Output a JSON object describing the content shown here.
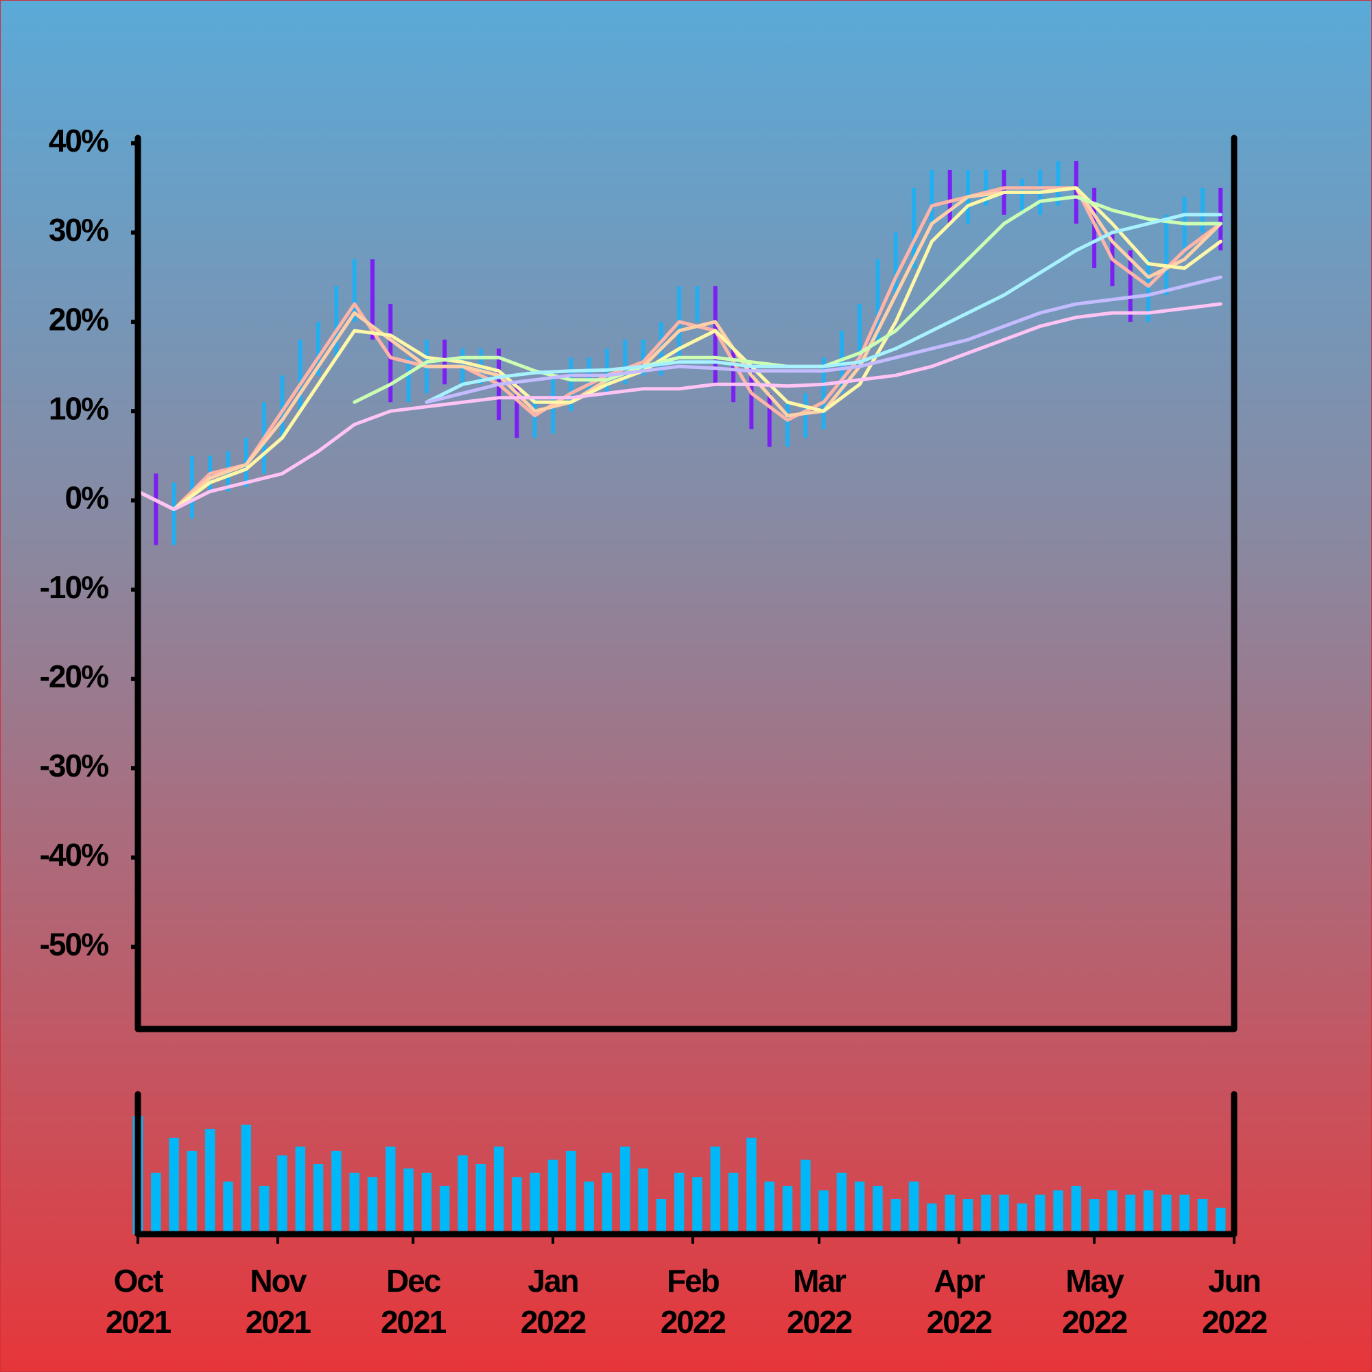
{
  "chart_data": {
    "type": "candlestick",
    "ylim": [
      -59.2,
      40.6
    ],
    "yticks": [
      {
        "value": 40,
        "label": "40%"
      },
      {
        "value": 30,
        "label": "30%"
      },
      {
        "value": 20,
        "label": "20%"
      },
      {
        "value": 10,
        "label": "10%"
      },
      {
        "value": 0,
        "label": "0%"
      },
      {
        "value": -10,
        "label": "-10%"
      },
      {
        "value": -20,
        "label": "-20%"
      },
      {
        "value": -30,
        "label": "-30%"
      },
      {
        "value": -40,
        "label": "-40%"
      },
      {
        "value": -50,
        "label": "-50%"
      }
    ],
    "xlim": [
      0,
      243
    ],
    "xticks": [
      {
        "value": 0,
        "label": "Oct 2021"
      },
      {
        "value": 31,
        "label": "Nov 2021"
      },
      {
        "value": 61,
        "label": "Dec 2021"
      },
      {
        "value": 92,
        "label": "Jan 2022"
      },
      {
        "value": 123,
        "label": "Feb 2022"
      },
      {
        "value": 151,
        "label": "Mar 2022"
      },
      {
        "value": 182,
        "label": "Apr 2022"
      },
      {
        "value": 212,
        "label": "May 2022"
      },
      {
        "value": 243,
        "label": "Jun 2022"
      }
    ],
    "up_color": "#22aef0",
    "down_color": "#7b1ff2",
    "candles": {
      "x": [
        0,
        4,
        8,
        12,
        16,
        20,
        24,
        28,
        32,
        36,
        40,
        44,
        48,
        52,
        56,
        60,
        64,
        68,
        72,
        76,
        80,
        84,
        88,
        92,
        96,
        100,
        104,
        108,
        112,
        116,
        120,
        124,
        128,
        132,
        136,
        140,
        144,
        148,
        152,
        156,
        160,
        164,
        168,
        172,
        176,
        180,
        184,
        188,
        192,
        196,
        200,
        204,
        208,
        212,
        216,
        220,
        224,
        228,
        232,
        236,
        240
      ],
      "open": [
        0,
        1,
        -3,
        0,
        3,
        3,
        3.5,
        5,
        9,
        12,
        16,
        18,
        22,
        25,
        20,
        13,
        14,
        16,
        15,
        15,
        15,
        11,
        9,
        9.5,
        12,
        14,
        14,
        15,
        16,
        16,
        18,
        22,
        22,
        15,
        13,
        10,
        8,
        9,
        10,
        14,
        17,
        20,
        25,
        28,
        33,
        35,
        33,
        35,
        35,
        34,
        34,
        35,
        36,
        33,
        28,
        26,
        22,
        25,
        30,
        32,
        33
      ],
      "close": [
        1,
        -3,
        0,
        3,
        3,
        3.5,
        5,
        9,
        12,
        16,
        18,
        22,
        25,
        20,
        13,
        14,
        16,
        15,
        15,
        15,
        11,
        9,
        9.5,
        12,
        14,
        14,
        15,
        16,
        16,
        18,
        22,
        22,
        15,
        13,
        10,
        8,
        9,
        10,
        14,
        17,
        20,
        25,
        28,
        33,
        35,
        33,
        35,
        35,
        34,
        34,
        35,
        36,
        33,
        28,
        26,
        22,
        25,
        30,
        32,
        33,
        30
      ],
      "low": [
        -2,
        -5,
        -5,
        -2,
        1,
        1,
        1.5,
        3,
        7,
        10,
        14,
        16,
        20,
        18,
        11,
        11,
        12,
        13,
        13,
        13,
        9,
        7,
        7,
        7.5,
        10,
        12,
        12,
        13,
        14,
        14,
        16,
        20,
        13,
        11,
        8,
        6,
        6,
        7,
        8,
        12,
        15,
        18,
        23,
        26,
        31,
        31,
        31,
        33,
        32,
        32,
        32,
        33,
        31,
        26,
        24,
        20,
        20,
        23,
        28,
        30,
        28
      ],
      "high": [
        3,
        3,
        2,
        5,
        5,
        5.5,
        7,
        11,
        14,
        18,
        20,
        24,
        27,
        27,
        22,
        16,
        18,
        18,
        17,
        17,
        17,
        13,
        11.5,
        14,
        16,
        16,
        17,
        18,
        18,
        20,
        24,
        24,
        24,
        17,
        15,
        12,
        11,
        12,
        16,
        19,
        22,
        27,
        30,
        35,
        37,
        37,
        37,
        37,
        37,
        36,
        37,
        38,
        38,
        35,
        30,
        28,
        27,
        32,
        34,
        35,
        35
      ]
    },
    "line_x": [
      0,
      8,
      16,
      24,
      32,
      40,
      48,
      56,
      64,
      72,
      80,
      88,
      96,
      104,
      112,
      120,
      128,
      136,
      144,
      152,
      160,
      168,
      176,
      184,
      192,
      200,
      208,
      216,
      224,
      232,
      240
    ],
    "lines": [
      {
        "color": "#ffb4a8",
        "values": [
          1,
          -1,
          3,
          4,
          10,
          16,
          22,
          16,
          15,
          15,
          13,
          9.5,
          12,
          14,
          15.5,
          20,
          19,
          12,
          9,
          11,
          16,
          25,
          33,
          34,
          35,
          35,
          35,
          27,
          24,
          28,
          31
        ]
      },
      {
        "color": "#ffd0a8",
        "values": [
          1,
          -1,
          2.5,
          4,
          9,
          15,
          21,
          18,
          15,
          15,
          14,
          10,
          11,
          13.5,
          15,
          19,
          20,
          14,
          9.5,
          10,
          15,
          23,
          31,
          34,
          34.5,
          34.5,
          35,
          29,
          25,
          27,
          31
        ]
      },
      {
        "color": "#fff7a8",
        "values": [
          1,
          -1,
          2,
          3.5,
          7,
          13,
          19,
          18.5,
          16,
          15.5,
          14.5,
          11,
          11,
          13,
          14.5,
          17,
          19,
          15,
          11,
          10,
          13,
          20,
          29,
          33,
          34.5,
          34.5,
          35,
          31,
          26.5,
          26,
          29
        ]
      },
      {
        "color": "#ccffb4",
        "values": [
          null,
          null,
          null,
          null,
          null,
          null,
          11,
          13,
          15.5,
          16,
          16,
          14.5,
          13.5,
          13.5,
          15,
          16,
          16,
          15.5,
          15,
          15,
          16.5,
          19,
          23,
          27,
          31,
          33.5,
          34,
          32.5,
          31.5,
          31,
          31
        ]
      },
      {
        "color": "#a8f2ff",
        "values": [
          null,
          null,
          null,
          null,
          null,
          null,
          null,
          null,
          11,
          13,
          13.8,
          14.3,
          14.5,
          14.6,
          15,
          15.5,
          15.5,
          15,
          15,
          15,
          15.5,
          17,
          19,
          21,
          23,
          25.5,
          28,
          30,
          31,
          32,
          32
        ]
      },
      {
        "color": "#c4bcff",
        "values": [
          null,
          null,
          null,
          null,
          null,
          null,
          null,
          null,
          11,
          12,
          13,
          13.5,
          14,
          14,
          14.5,
          15,
          14.8,
          14.5,
          14.5,
          14.5,
          15,
          16,
          17,
          18,
          19.5,
          21,
          22,
          22.5,
          23,
          24,
          25
        ]
      },
      {
        "color": "#ffc4f4",
        "values": [
          1,
          -1,
          1,
          2,
          3,
          5.5,
          8.5,
          10,
          10.5,
          11,
          11.5,
          11.5,
          11.5,
          12,
          12.5,
          12.5,
          13,
          13,
          12.8,
          13,
          13.5,
          14,
          15,
          16.5,
          18,
          19.5,
          20.5,
          21,
          21,
          21.5,
          22
        ]
      }
    ],
    "volume": {
      "color": "#00b8f8",
      "ylim": [
        0,
        160
      ],
      "values": [
        135,
        70,
        110,
        95,
        120,
        60,
        125,
        55,
        90,
        100,
        80,
        95,
        70,
        65,
        100,
        75,
        70,
        55,
        90,
        80,
        100,
        65,
        70,
        85,
        95,
        60,
        70,
        100,
        75,
        40,
        70,
        65,
        100,
        70,
        110,
        60,
        55,
        85,
        50,
        70,
        60,
        55,
        40,
        60,
        35,
        45,
        40,
        45,
        45,
        35,
        45,
        50,
        55,
        40,
        50,
        45,
        50,
        45,
        45,
        40,
        30
      ]
    }
  }
}
